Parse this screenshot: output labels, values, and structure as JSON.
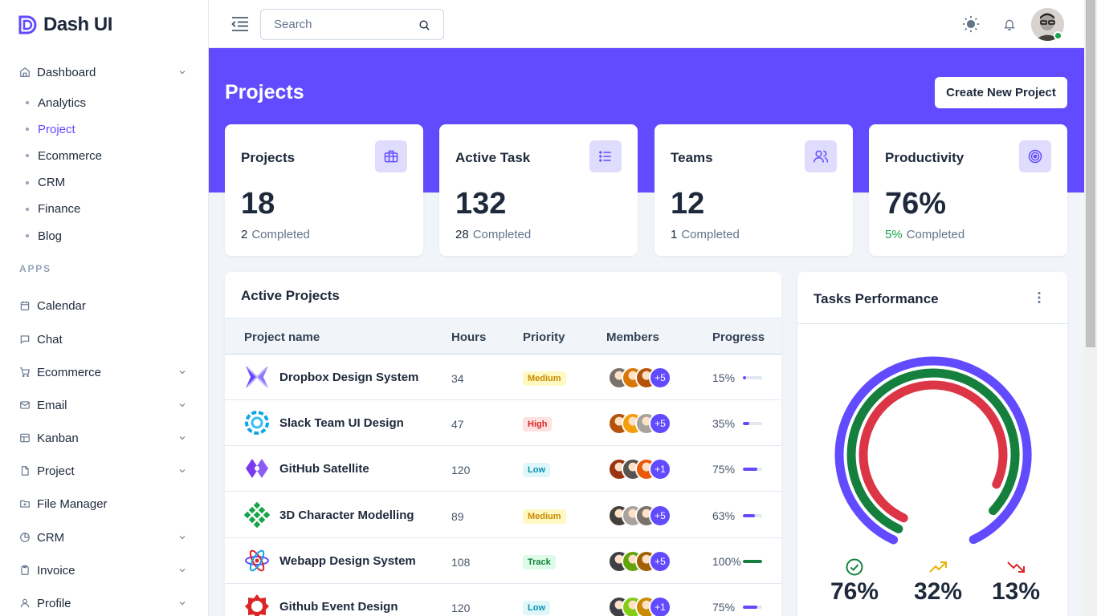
{
  "app": {
    "brand": "Dash UI"
  },
  "sidebar": {
    "dashboard_label": "Dashboard",
    "dashboard_sub": [
      "Analytics",
      "Project",
      "Ecommerce",
      "CRM",
      "Finance",
      "Blog"
    ],
    "active_sub": "Project",
    "apps_label": "APPS",
    "items": [
      {
        "label": "Calendar",
        "icon": "calendar-icon",
        "expandable": false
      },
      {
        "label": "Chat",
        "icon": "chat-icon",
        "expandable": false
      },
      {
        "label": "Ecommerce",
        "icon": "cart-icon",
        "expandable": true
      },
      {
        "label": "Email",
        "icon": "mail-icon",
        "expandable": true
      },
      {
        "label": "Kanban",
        "icon": "kanban-icon",
        "expandable": true
      },
      {
        "label": "Project",
        "icon": "file-icon",
        "expandable": true
      },
      {
        "label": "File Manager",
        "icon": "folder-icon",
        "expandable": false
      },
      {
        "label": "CRM",
        "icon": "pie-chart-icon",
        "expandable": true
      },
      {
        "label": "Invoice",
        "icon": "clipboard-icon",
        "expandable": true
      },
      {
        "label": "Profile",
        "icon": "user-icon",
        "expandable": true
      }
    ]
  },
  "topbar": {
    "search_placeholder": "Search"
  },
  "header": {
    "title": "Projects",
    "create_button": "Create New Project"
  },
  "stats": [
    {
      "label": "Projects",
      "value": "18",
      "completed_num": "2",
      "completed_label": "Completed",
      "icon": "briefcase-icon",
      "highlight": false
    },
    {
      "label": "Active Task",
      "value": "132",
      "completed_num": "28",
      "completed_label": "Completed",
      "icon": "list-icon",
      "highlight": false
    },
    {
      "label": "Teams",
      "value": "12",
      "completed_num": "1",
      "completed_label": "Completed",
      "icon": "users-icon",
      "highlight": false
    },
    {
      "label": "Productivity",
      "value": "76%",
      "completed_num": "5%",
      "completed_label": "Completed",
      "icon": "target-icon",
      "highlight": true
    }
  ],
  "active_projects": {
    "title": "Active Projects",
    "columns": [
      "Project name",
      "Hours",
      "Priority",
      "Members",
      "Progress"
    ],
    "rows": [
      {
        "name": "Dropbox Design System",
        "hours": "34",
        "priority": "Medium",
        "priority_class": "b-medium",
        "more": "+5",
        "progress_text": "15%",
        "progress": 15,
        "logo": "dropbox",
        "bar_color": "#624bff"
      },
      {
        "name": "Slack Team UI Design",
        "hours": "47",
        "priority": "High",
        "priority_class": "b-high",
        "more": "+5",
        "progress_text": "35%",
        "progress": 35,
        "logo": "slack",
        "bar_color": "#624bff"
      },
      {
        "name": "GitHub Satellite",
        "hours": "120",
        "priority": "Low",
        "priority_class": "b-low",
        "more": "+1",
        "progress_text": "75%",
        "progress": 75,
        "logo": "github",
        "bar_color": "#624bff"
      },
      {
        "name": "3D Character Modelling",
        "hours": "89",
        "priority": "Medium",
        "priority_class": "b-medium",
        "more": "+5",
        "progress_text": "63%",
        "progress": 63,
        "logo": "3d",
        "bar_color": "#624bff"
      },
      {
        "name": "Webapp Design System",
        "hours": "108",
        "priority": "Track",
        "priority_class": "b-track",
        "more": "+5",
        "progress_text": "100%",
        "progress": 100,
        "logo": "webapp",
        "bar_color": "#15803d"
      },
      {
        "name": "Github Event Design",
        "hours": "120",
        "priority": "Low",
        "priority_class": "b-low",
        "more": "+1",
        "progress_text": "75%",
        "progress": 75,
        "logo": "event",
        "bar_color": "#624bff"
      }
    ]
  },
  "tasks_performance": {
    "title": "Tasks Performance",
    "stats": [
      {
        "value": "76%",
        "icon": "check-circle-icon",
        "color": "#15803d"
      },
      {
        "value": "32%",
        "icon": "trending-up-icon",
        "color": "#eab308"
      },
      {
        "value": "13%",
        "icon": "trending-down-icon",
        "color": "#dc2626"
      }
    ],
    "rings": [
      {
        "color": "#624bff",
        "percent": 86
      },
      {
        "color": "#15803d",
        "percent": 80
      },
      {
        "color": "#dc3545",
        "percent": 75
      }
    ]
  },
  "colors": {
    "primary": "#624bff",
    "success": "#15803d",
    "danger": "#dc3545",
    "warning": "#eab308"
  }
}
